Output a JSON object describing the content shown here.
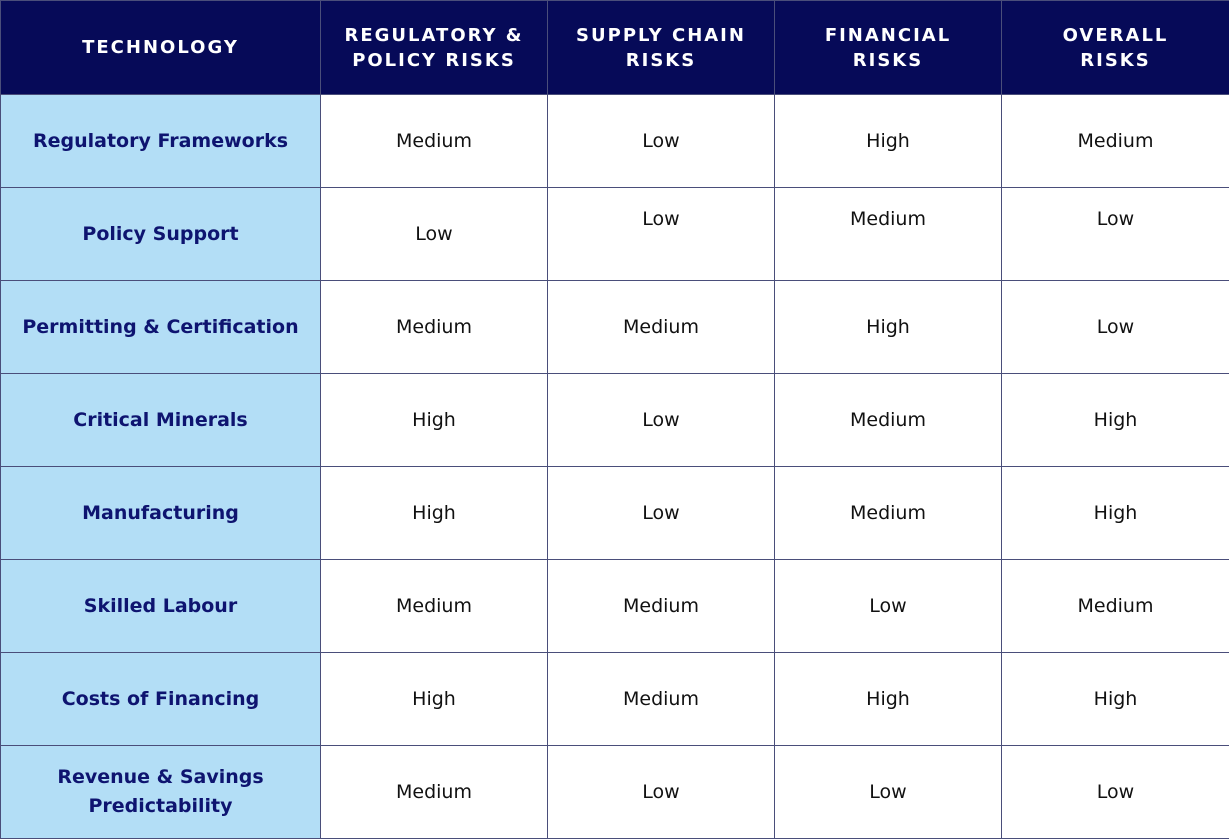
{
  "table": {
    "headers": [
      "TECHNOLOGY",
      "REGULATORY &\nPOLICY RISKS",
      "SUPPLY CHAIN\nRISKS",
      "FINANCIAL\nRISKS",
      "OVERALL\nRISKS"
    ],
    "rows": [
      {
        "label": "Regulatory Frameworks",
        "values": [
          "Medium",
          "Low",
          "High",
          "Medium"
        ]
      },
      {
        "label": "Policy Support",
        "values": [
          "Low",
          "Low",
          "Medium",
          "Low"
        ]
      },
      {
        "label": "Permitting & Certification",
        "values": [
          "Medium",
          "Medium",
          "High",
          "Low"
        ]
      },
      {
        "label": "Critical Minerals",
        "values": [
          "High",
          "Low",
          "Medium",
          "High"
        ]
      },
      {
        "label": "Manufacturing",
        "values": [
          "High",
          "Low",
          "Medium",
          "High"
        ]
      },
      {
        "label": "Skilled Labour",
        "values": [
          "Medium",
          "Medium",
          "Low",
          "Medium"
        ]
      },
      {
        "label": "Costs of Financing",
        "values": [
          "High",
          "Medium",
          "High",
          "High"
        ]
      },
      {
        "label": "Revenue & Savings\nPredictability",
        "values": [
          "Medium",
          "Low",
          "Low",
          "Low"
        ]
      }
    ]
  },
  "colors": {
    "header_bg": "#060a58",
    "header_text": "#ffffff",
    "label_bg": "#b3def6",
    "label_text": "#0e1470",
    "border": "#4a4e7a"
  }
}
